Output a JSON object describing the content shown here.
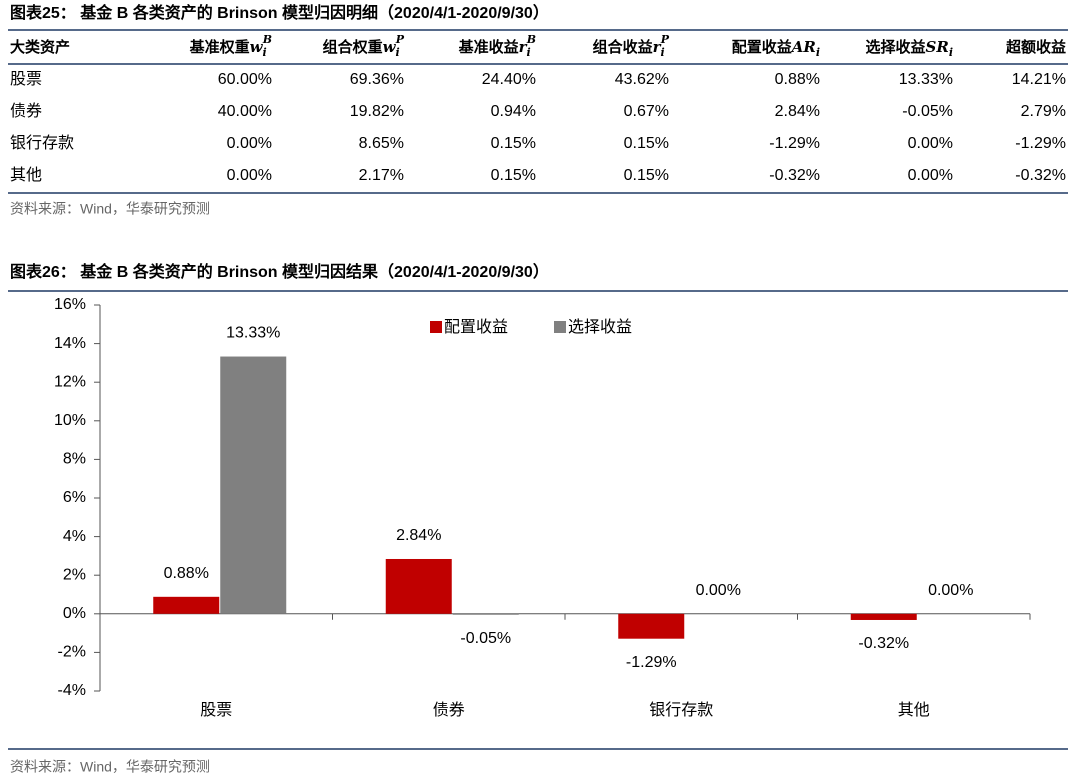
{
  "table": {
    "title": "图表25： 基金 B 各类资产的 Brinson 模型归因明细（2020/4/1-2020/9/30）",
    "header": [
      {
        "text": "大类资产"
      },
      {
        "text": "基准权重",
        "var": "w",
        "sub": "i",
        "sup": "B"
      },
      {
        "text": "组合权重",
        "var": "w",
        "sub": "i",
        "sup": "P"
      },
      {
        "text": "基准收益",
        "var": "r",
        "sub": "i",
        "sup": "B"
      },
      {
        "text": "组合收益",
        "var": "r",
        "sub": "i",
        "sup": "P"
      },
      {
        "text": "配置收益",
        "var": "AR",
        "sub": "i"
      },
      {
        "text": "选择收益",
        "var": "SR",
        "sub": "i"
      },
      {
        "text": "超额收益"
      }
    ],
    "rows": [
      [
        "股票",
        "60.00%",
        "69.36%",
        "24.40%",
        "43.62%",
        "0.88%",
        "13.33%",
        "14.21%"
      ],
      [
        "债券",
        "40.00%",
        "19.82%",
        "0.94%",
        "0.67%",
        "2.84%",
        "-0.05%",
        "2.79%"
      ],
      [
        "银行存款",
        "0.00%",
        "8.65%",
        "0.15%",
        "0.15%",
        "-1.29%",
        "0.00%",
        "-1.29%"
      ],
      [
        "其他",
        "0.00%",
        "2.17%",
        "0.15%",
        "0.15%",
        "-0.32%",
        "0.00%",
        "-0.32%"
      ]
    ],
    "source": "资料来源：Wind，华泰研究预测"
  },
  "chart_data": {
    "type": "bar",
    "title": "图表26： 基金 B 各类资产的 Brinson 模型归因结果（2020/4/1-2020/9/30）",
    "categories": [
      "股票",
      "债券",
      "银行存款",
      "其他"
    ],
    "series": [
      {
        "name": "配置收益",
        "color": "#c00000",
        "values": [
          0.88,
          2.84,
          -1.29,
          -0.32
        ],
        "value_labels": [
          "0.88%",
          "2.84%",
          "-1.29%",
          "-0.32%"
        ]
      },
      {
        "name": "选择收益",
        "color": "#808080",
        "values": [
          13.33,
          -0.05,
          0,
          0
        ],
        "value_labels": [
          "13.33%",
          "-0.05%",
          "0.00%",
          "0.00%"
        ]
      }
    ],
    "ylim": [
      -4,
      16
    ],
    "yticks": [
      {
        "value": -4,
        "label": "-4%"
      },
      {
        "value": -2,
        "label": "-2%"
      },
      {
        "value": 0,
        "label": "0%"
      },
      {
        "value": 2,
        "label": "2%"
      },
      {
        "value": 4,
        "label": "4%"
      },
      {
        "value": 6,
        "label": "6%"
      },
      {
        "value": 8,
        "label": "8%"
      },
      {
        "value": 10,
        "label": "10%"
      },
      {
        "value": 12,
        "label": "12%"
      },
      {
        "value": 14,
        "label": "14%"
      },
      {
        "value": 16,
        "label": "16%"
      }
    ],
    "legend": "top",
    "grid": false,
    "source": "资料来源：Wind，华泰研究预测"
  }
}
